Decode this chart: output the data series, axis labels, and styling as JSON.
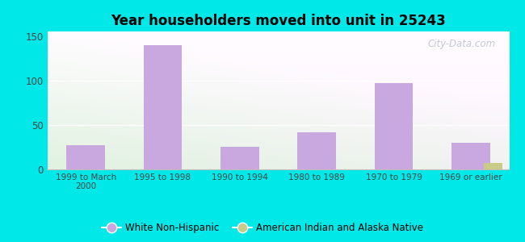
{
  "title": "Year householders moved into unit in 25243",
  "categories": [
    "1999 to March\n2000",
    "1995 to 1998",
    "1990 to 1994",
    "1980 to 1989",
    "1970 to 1979",
    "1969 or earlier"
  ],
  "white_non_hispanic": [
    27,
    140,
    25,
    42,
    97,
    30
  ],
  "american_indian": [
    0,
    0,
    0,
    0,
    0,
    7
  ],
  "bar_color_white": "#c9a8e0",
  "bar_color_indian": "#c8cc88",
  "ylim": [
    0,
    150
  ],
  "yticks": [
    0,
    50,
    100,
    150
  ],
  "bg_outer": "#00e8e8",
  "watermark": "City-Data.com",
  "legend_white": "White Non-Hispanic",
  "legend_indian": "American Indian and Alaska Native",
  "bar_width": 0.5
}
